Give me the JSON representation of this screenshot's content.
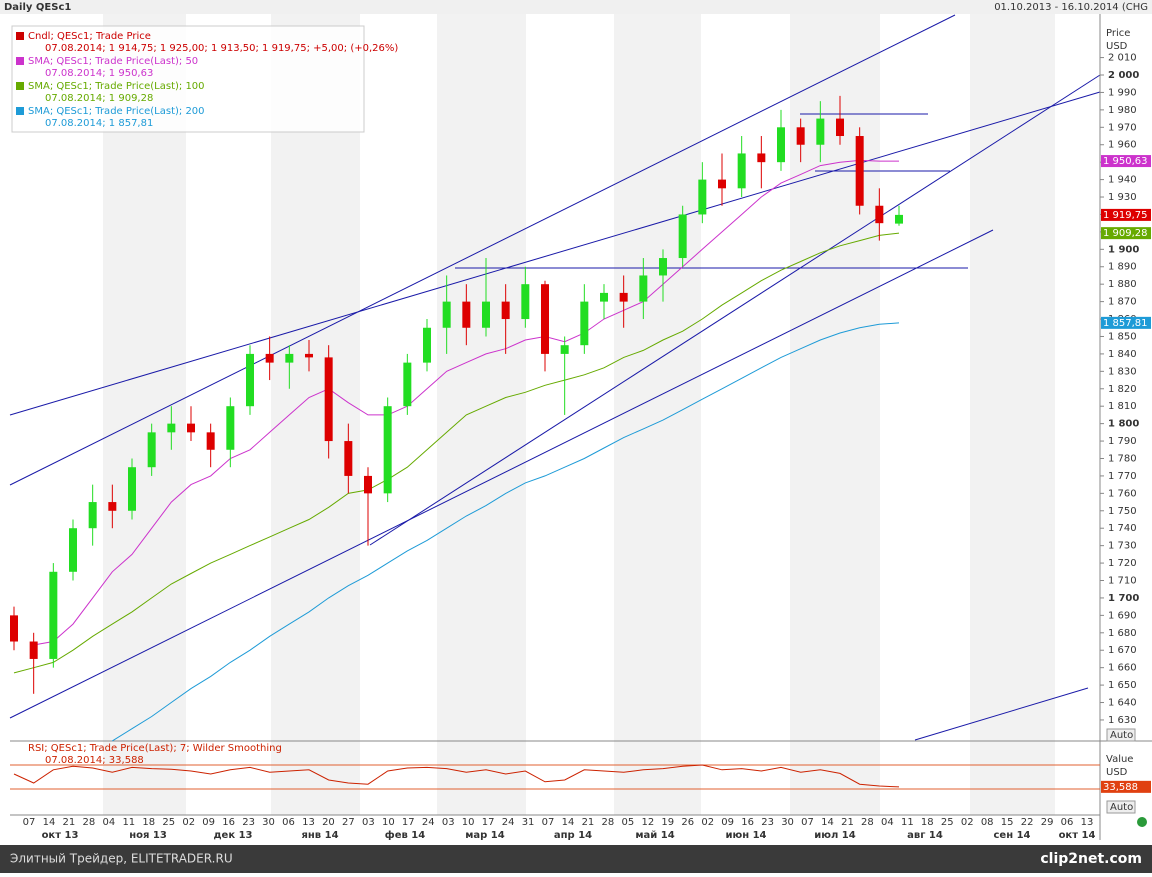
{
  "chart_data": [
    {
      "type": "candlestick",
      "title": "Daily QESc1",
      "date_range": "01.10.2013 - 16.10.2014 (CHG",
      "axis_label": "Price",
      "currency": "USD",
      "auto_button": "Auto",
      "up_color": "#22dd22",
      "down_color": "#dd0000",
      "open": [
        1690,
        1675,
        1665,
        1715,
        1740,
        1755,
        1750,
        1775,
        1795,
        1800,
        1795,
        1785,
        1810,
        1840,
        1835,
        1840,
        1838,
        1790,
        1770,
        1760,
        1810,
        1835,
        1855,
        1870,
        1855,
        1870,
        1860,
        1880,
        1840,
        1845,
        1870,
        1875,
        1870,
        1885,
        1895,
        1920,
        1940,
        1935,
        1955,
        1950,
        1970,
        1960,
        1975,
        1965,
        1925,
        1914.75
      ],
      "high": [
        1695,
        1680,
        1720,
        1745,
        1765,
        1765,
        1780,
        1800,
        1810,
        1810,
        1800,
        1815,
        1845,
        1850,
        1845,
        1848,
        1845,
        1800,
        1775,
        1815,
        1840,
        1860,
        1885,
        1880,
        1895,
        1880,
        1890,
        1882,
        1850,
        1880,
        1880,
        1885,
        1895,
        1900,
        1925,
        1950,
        1955,
        1965,
        1965,
        1980,
        1975,
        1985,
        1988,
        1970,
        1935,
        1925
      ],
      "low": [
        1670,
        1645,
        1660,
        1710,
        1730,
        1740,
        1745,
        1770,
        1785,
        1790,
        1775,
        1775,
        1805,
        1825,
        1820,
        1830,
        1780,
        1760,
        1730,
        1755,
        1805,
        1830,
        1840,
        1845,
        1850,
        1840,
        1855,
        1830,
        1805,
        1840,
        1860,
        1855,
        1860,
        1870,
        1890,
        1915,
        1925,
        1930,
        1935,
        1945,
        1950,
        1950,
        1960,
        1920,
        1905,
        1913.5
      ],
      "close": [
        1675,
        1665,
        1715,
        1740,
        1755,
        1750,
        1775,
        1795,
        1800,
        1795,
        1785,
        1810,
        1840,
        1835,
        1840,
        1838,
        1790,
        1770,
        1760,
        1810,
        1835,
        1855,
        1870,
        1855,
        1870,
        1860,
        1880,
        1840,
        1845,
        1870,
        1875,
        1870,
        1885,
        1895,
        1920,
        1940,
        1935,
        1955,
        1950,
        1970,
        1960,
        1975,
        1965,
        1925,
        1915,
        1919.75
      ],
      "legend": [
        {
          "name": "Cndl; QESc1; Trade Price",
          "detail": "07.08.2014; 1 914,75; 1 925,00; 1 913,50; 1 919,75; +5,00; (+0,26%)",
          "color": "#cc0000"
        },
        {
          "name": "SMA; QESc1; Trade Price(Last);  50",
          "detail": "07.08.2014; 1 950,63",
          "color": "#cc33cc"
        },
        {
          "name": "SMA; QESc1; Trade Price(Last);  100",
          "detail": "07.08.2014; 1 909,28",
          "color": "#66aa00"
        },
        {
          "name": "SMA; QESc1; Trade Price(Last);  200",
          "detail": "07.08.2014; 1 857,81",
          "color": "#1e9bd7"
        }
      ],
      "last_close_label": "1 919,75",
      "series": [
        {
          "color": "#cc33cc",
          "last_label": "1 950,63",
          "values": [
            null,
            1673,
            1675,
            1685,
            1700,
            1715,
            1725,
            1740,
            1755,
            1765,
            1770,
            1780,
            1785,
            1795,
            1805,
            1815,
            1820,
            1812,
            1805,
            1805,
            1810,
            1820,
            1830,
            1835,
            1840,
            1843,
            1848,
            1850,
            1847,
            1852,
            1860,
            1865,
            1870,
            1880,
            1890,
            1900,
            1910,
            1920,
            1930,
            1938,
            1943,
            1948,
            1950,
            1951,
            1950.6,
            1950.63
          ]
        },
        {
          "color": "#66aa00",
          "last_label": "1 909,28",
          "values": [
            1657,
            1660,
            1663,
            1670,
            1678,
            1685,
            1692,
            1700,
            1708,
            1714,
            1720,
            1725,
            1730,
            1735,
            1740,
            1745,
            1752,
            1760,
            1762,
            1768,
            1775,
            1785,
            1795,
            1805,
            1810,
            1815,
            1818,
            1822,
            1825,
            1828,
            1832,
            1838,
            1842,
            1848,
            1853,
            1860,
            1868,
            1875,
            1882,
            1888,
            1893,
            1898,
            1902,
            1905,
            1908,
            1909.28
          ]
        },
        {
          "color": "#1e9bd7",
          "last_label": "1 857,81",
          "values": [
            null,
            null,
            null,
            null,
            null,
            1618,
            1625,
            1632,
            1640,
            1648,
            1655,
            1663,
            1670,
            1678,
            1685,
            1692,
            1700,
            1707,
            1713,
            1720,
            1727,
            1733,
            1740,
            1747,
            1753,
            1760,
            1766,
            1770,
            1775,
            1780,
            1786,
            1792,
            1797,
            1802,
            1808,
            1814,
            1820,
            1826,
            1832,
            1838,
            1843,
            1848,
            1852,
            1855,
            1857,
            1857.81
          ]
        }
      ],
      "ylim": [
        1618.5,
        2035
      ],
      "yticks": [
        {
          "value": 1630,
          "label": "1 630"
        },
        {
          "value": 1640,
          "label": "1 640"
        },
        {
          "value": 1650,
          "label": "1 650"
        },
        {
          "value": 1660,
          "label": "1 660"
        },
        {
          "value": 1670,
          "label": "1 670"
        },
        {
          "value": 1680,
          "label": "1 680"
        },
        {
          "value": 1690,
          "label": "1 690"
        },
        {
          "value": 1700,
          "label": "1 700"
        },
        {
          "value": 1710,
          "label": "1 710"
        },
        {
          "value": 1720,
          "label": "1 720"
        },
        {
          "value": 1730,
          "label": "1 730"
        },
        {
          "value": 1740,
          "label": "1 740"
        },
        {
          "value": 1750,
          "label": "1 750"
        },
        {
          "value": 1760,
          "label": "1 760"
        },
        {
          "value": 1770,
          "label": "1 770"
        },
        {
          "value": 1780,
          "label": "1 780"
        },
        {
          "value": 1790,
          "label": "1 790"
        },
        {
          "value": 1800,
          "label": "1 800"
        },
        {
          "value": 1810,
          "label": "1 810"
        },
        {
          "value": 1820,
          "label": "1 820"
        },
        {
          "value": 1830,
          "label": "1 830"
        },
        {
          "value": 1840,
          "label": "1 840"
        },
        {
          "value": 1850,
          "label": "1 850"
        },
        {
          "value": 1860,
          "label": "1 860"
        },
        {
          "value": 1870,
          "label": "1 870"
        },
        {
          "value": 1880,
          "label": "1 880"
        },
        {
          "value": 1890,
          "label": "1 890"
        },
        {
          "value": 1900,
          "label": "1 900"
        },
        {
          "value": 1910,
          "label": "1 910"
        },
        {
          "value": 1920,
          "label": "1 920"
        },
        {
          "value": 1930,
          "label": "1 930"
        },
        {
          "value": 1940,
          "label": "1 940"
        },
        {
          "value": 1950,
          "label": "1 950"
        },
        {
          "value": 1960,
          "label": "1 960"
        },
        {
          "value": 1970,
          "label": "1 970"
        },
        {
          "value": 1980,
          "label": "1 980"
        },
        {
          "value": 1990,
          "label": "1 990"
        },
        {
          "value": 2000,
          "label": "2 000"
        },
        {
          "value": 2010,
          "label": "2 010"
        }
      ],
      "day_labels": [
        "07",
        "14",
        "21",
        "28",
        "04",
        "11",
        "18",
        "25",
        "02",
        "09",
        "16",
        "23",
        "30",
        "06",
        "13",
        "20",
        "27",
        "03",
        "10",
        "17",
        "24",
        "03",
        "10",
        "17",
        "24",
        "31",
        "07",
        "14",
        "21",
        "28",
        "05",
        "12",
        "19",
        "26",
        "02",
        "09",
        "16",
        "23",
        "30",
        "07",
        "14",
        "21",
        "28",
        "04",
        "11",
        "18",
        "25",
        "02",
        "08",
        "15",
        "22",
        "29",
        "06",
        "13"
      ],
      "month_labels": [
        "окт 13",
        "ноя 13",
        "дек 13",
        "янв 14",
        "фев 14",
        "мар 14",
        "апр 14",
        "май 14",
        "июн 14",
        "июл 14",
        "авг 14",
        "сен 14",
        "окт 14"
      ]
    },
    {
      "type": "line",
      "legend": "RSI; QESc1; Trade Price(Last);  7; Wilder Smoothing",
      "detail": "07.08.2014; 33,588",
      "axis_label": "Value",
      "currency": "USD",
      "auto_button": "Auto",
      "color": "#cc2200",
      "level_color": "#e06030",
      "levels": [
        70,
        30
      ],
      "last_label": "33,588",
      "values": [
        55,
        40,
        62,
        68,
        65,
        58,
        66,
        64,
        63,
        60,
        55,
        62,
        66,
        58,
        60,
        62,
        45,
        40,
        38,
        60,
        65,
        66,
        64,
        58,
        62,
        55,
        60,
        42,
        45,
        62,
        60,
        58,
        62,
        64,
        68,
        70,
        62,
        64,
        60,
        66,
        58,
        62,
        56,
        38,
        35,
        33.588
      ],
      "ylim": [
        -13.3,
        108.3
      ]
    }
  ],
  "footer": {
    "source": "Элитный Трейдер, ELITETRADER.RU",
    "brand": "clip2net.com"
  }
}
